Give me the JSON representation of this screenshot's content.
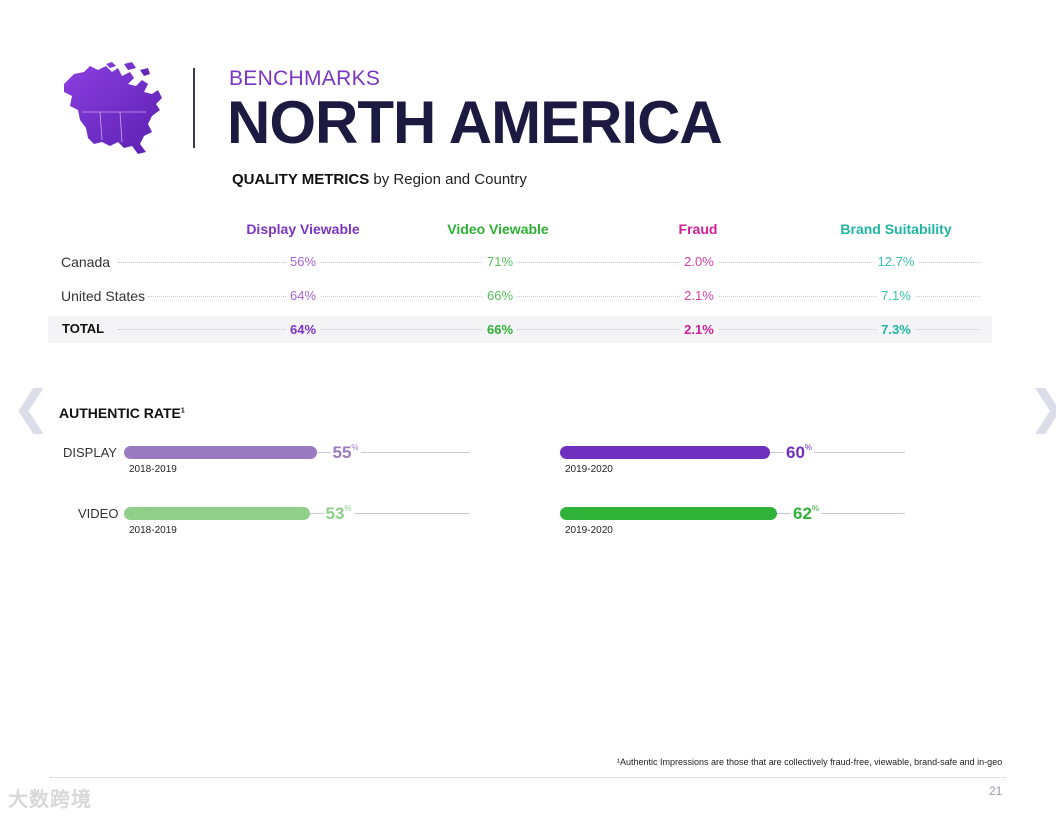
{
  "header": {
    "kicker": "BENCHMARKS",
    "title": "NORTH AMERICA",
    "subtitle_bold": "QUALITY METRICS",
    "subtitle_rest": " by Region and Country"
  },
  "table": {
    "columns": [
      {
        "label": "Display Viewable",
        "color": "#7b35c4"
      },
      {
        "label": "Video Viewable",
        "color": "#2fb033"
      },
      {
        "label": "Fraud",
        "color": "#d21e96"
      },
      {
        "label": "Brand Suitability",
        "color": "#1fb5a2"
      }
    ],
    "value_colors": [
      "#a463d8",
      "#55c25a",
      "#d540a8",
      "#3cc0b0"
    ],
    "total_colors": [
      "#7b35c4",
      "#2fb033",
      "#d21e96",
      "#1fb5a2"
    ],
    "rows": [
      {
        "label": "Canada",
        "values": [
          "56%",
          "71%",
          "2.0%",
          "12.7%"
        ]
      },
      {
        "label": "United States",
        "values": [
          "64%",
          "66%",
          "2.1%",
          "7.1%"
        ]
      }
    ],
    "total": {
      "label": "TOTAL",
      "values": [
        "64%",
        "66%",
        "2.1%",
        "7.3%"
      ]
    }
  },
  "authentic_rate": {
    "title": "AUTHENTIC RATE",
    "title_sup": "1",
    "rows": [
      {
        "label": "DISPLAY",
        "bars": [
          {
            "period": "2018-2019",
            "value": 55,
            "value_text": "55",
            "color": "#9b7bc0"
          },
          {
            "period": "2019-2020",
            "value": 60,
            "value_text": "60",
            "color": "#7030bf"
          }
        ]
      },
      {
        "label": "VIDEO",
        "bars": [
          {
            "period": "2018-2019",
            "value": 53,
            "value_text": "53",
            "color": "#8fcf8a"
          },
          {
            "period": "2019-2020",
            "value": 62,
            "value_text": "62",
            "color": "#31b33a"
          }
        ]
      }
    ],
    "pct_sign": "%"
  },
  "footer": {
    "footnote": "¹Authentic Impressions are those that are collectively fraud-free, viewable, brand-safe and in-geo",
    "page_number": "21",
    "watermark": "大数跨境"
  },
  "nav": {
    "prev_glyph": "❮",
    "next_glyph": "❯"
  }
}
